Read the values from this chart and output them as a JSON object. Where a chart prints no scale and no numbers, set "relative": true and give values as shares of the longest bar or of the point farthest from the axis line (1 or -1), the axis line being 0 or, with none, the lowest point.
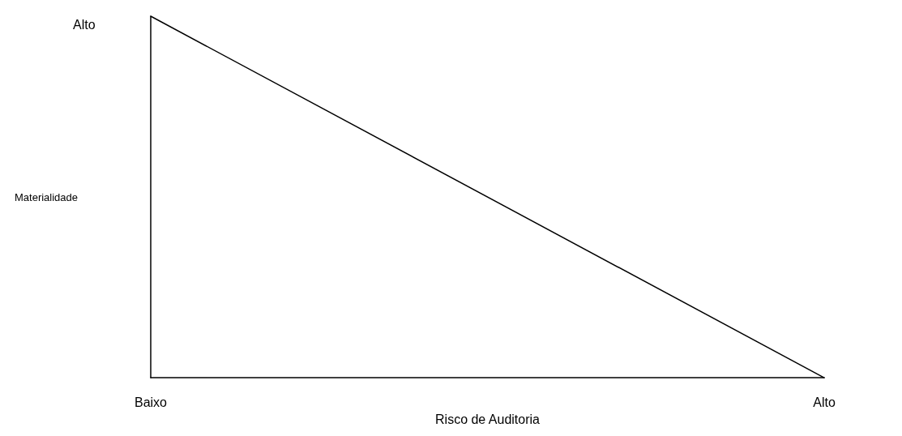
{
  "chart_data": {
    "type": "line",
    "relative": true,
    "xlabel": "Risco de Auditoria",
    "ylabel": "Materialidade",
    "categories": [
      "Baixo",
      "Alto"
    ],
    "series": [
      {
        "color": "#000000",
        "values": [
          1,
          0
        ]
      }
    ],
    "annotations": [
      "Alto"
    ],
    "marker": "none",
    "line_style": "solid"
  }
}
